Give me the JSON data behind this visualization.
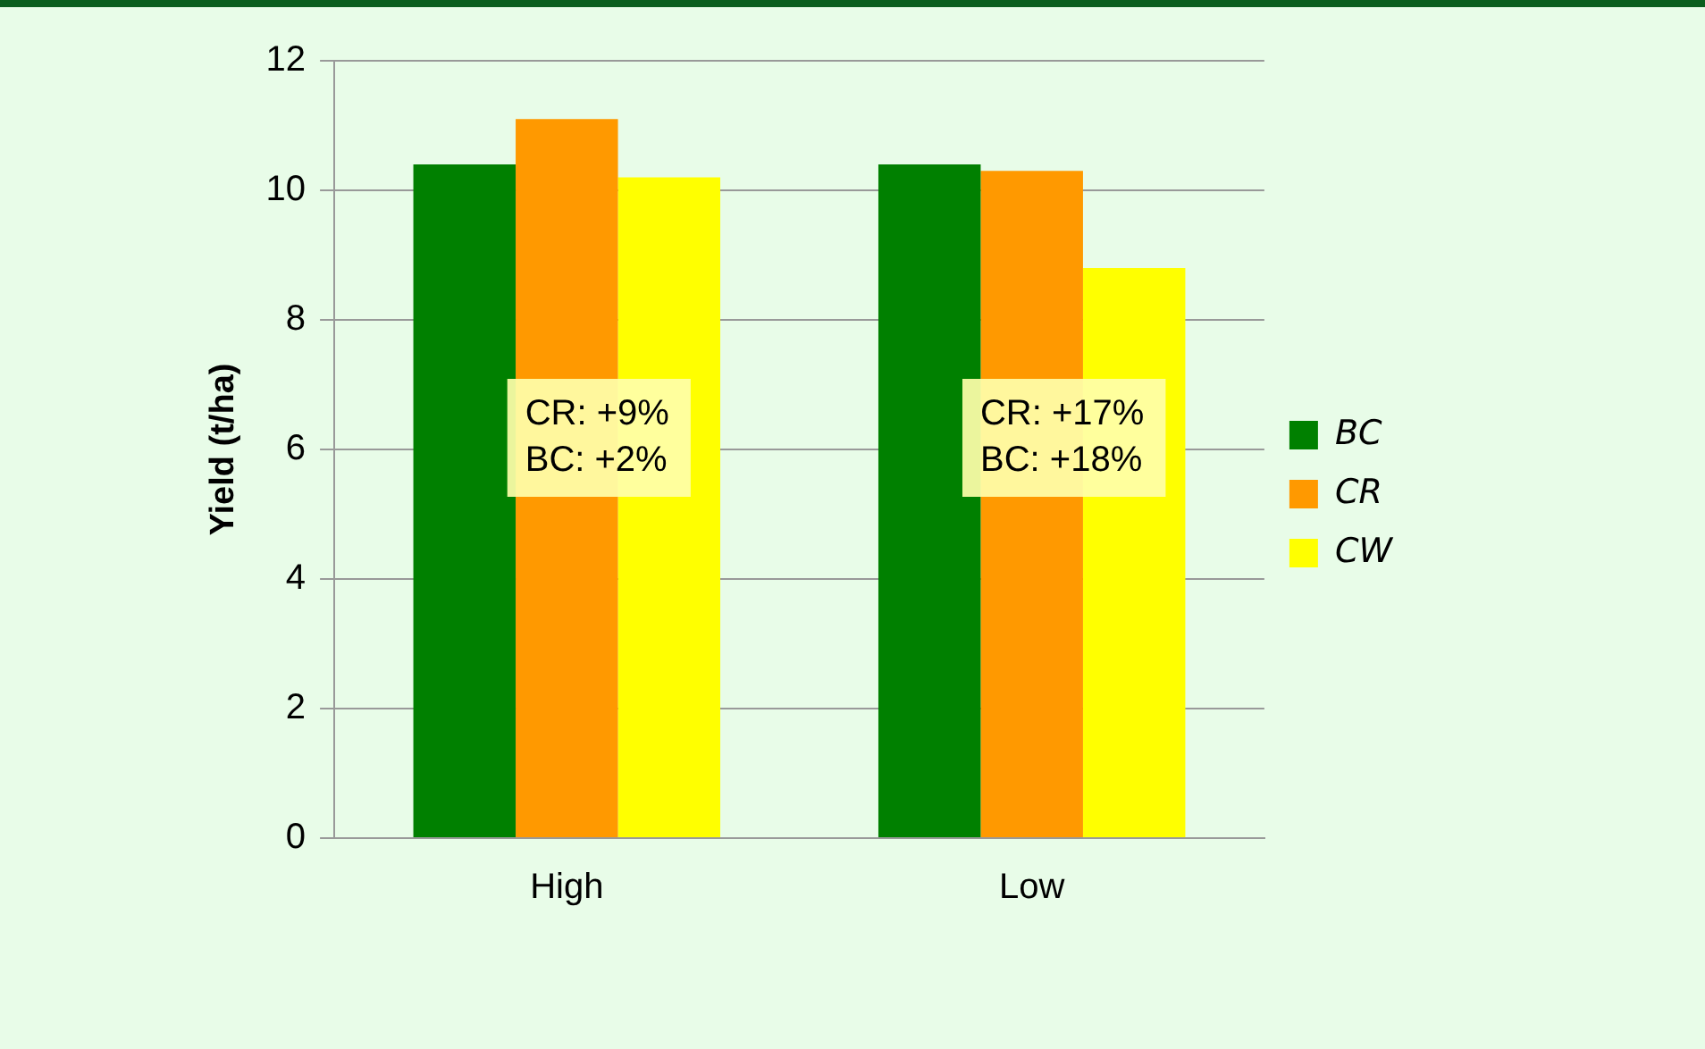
{
  "chart_data": {
    "type": "bar",
    "ylabel": "Yield (t/ha)",
    "categories": [
      "High",
      "Low"
    ],
    "series": [
      {
        "name": "BC",
        "color": "#008000",
        "values": [
          10.4,
          10.4
        ]
      },
      {
        "name": "CR",
        "color": "#ff9900",
        "values": [
          11.1,
          10.3
        ]
      },
      {
        "name": "CW",
        "color": "#ffff00",
        "values": [
          10.2,
          8.8
        ]
      }
    ],
    "ylim": [
      0,
      12
    ],
    "yticks": [
      0,
      2,
      4,
      6,
      8,
      10,
      12
    ],
    "grid": "y",
    "legend": "right",
    "annotations": [
      "CR: +9%\nBC: +2%",
      "CR: +17%\nBC: +18%"
    ]
  }
}
